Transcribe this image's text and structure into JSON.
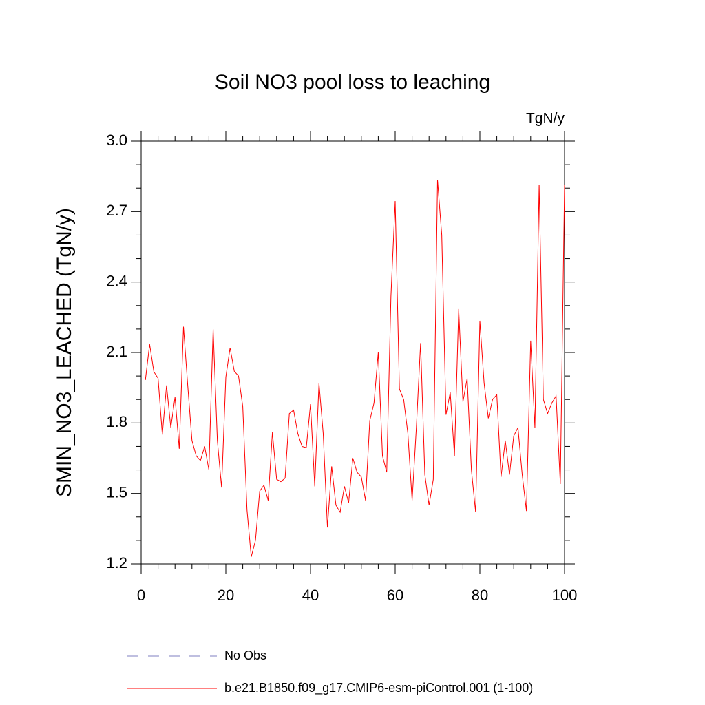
{
  "chart_data": {
    "type": "line",
    "title": "Soil NO3 pool loss to leaching",
    "units_label": "TgN/y",
    "y_label": "SMIN_NO3_LEACHED  (TgN/y)",
    "x": [
      1,
      2,
      3,
      4,
      5,
      6,
      7,
      8,
      9,
      10,
      11,
      12,
      13,
      14,
      15,
      16,
      17,
      18,
      19,
      20,
      21,
      22,
      23,
      24,
      25,
      26,
      27,
      28,
      29,
      30,
      31,
      32,
      33,
      34,
      35,
      36,
      37,
      38,
      39,
      40,
      41,
      42,
      43,
      44,
      45,
      46,
      47,
      48,
      49,
      50,
      51,
      52,
      53,
      54,
      55,
      56,
      57,
      58,
      59,
      60,
      61,
      62,
      63,
      64,
      65,
      66,
      67,
      68,
      69,
      70,
      71,
      72,
      73,
      74,
      75,
      76,
      77,
      78,
      79,
      80,
      81,
      82,
      83,
      84,
      85,
      86,
      87,
      88,
      89,
      90,
      91,
      92,
      93,
      94,
      95,
      96,
      97,
      98,
      99,
      100
    ],
    "series": [
      {
        "name": "No Obs",
        "color": "#7f7fc0",
        "dashed": true,
        "values": [
          null,
          null,
          null,
          null,
          null,
          null,
          null,
          null,
          null,
          null,
          null,
          null,
          null,
          null,
          null,
          null,
          null,
          null,
          null,
          null,
          null,
          null,
          null,
          null,
          null,
          null,
          null,
          null,
          null,
          null,
          null,
          null,
          null,
          null,
          null,
          null,
          null,
          null,
          null,
          null,
          null,
          null,
          null,
          null,
          null,
          null,
          null,
          null,
          null,
          null,
          null,
          null,
          null,
          null,
          null,
          null,
          null,
          null,
          null,
          null,
          null,
          null,
          null,
          null,
          null,
          null,
          null,
          null,
          null,
          null,
          null,
          null,
          null,
          null,
          null,
          null,
          null,
          null,
          null,
          null,
          null,
          null,
          null,
          null,
          null,
          null,
          null,
          null,
          null,
          null,
          null,
          null,
          null,
          null,
          null,
          null,
          null,
          null,
          null,
          null
        ]
      },
      {
        "name": "b.e21.B1850.f09_g17.CMIP6-esm-piControl.001 (1-100)",
        "color": "#ff0000",
        "dashed": false,
        "values": [
          1.983,
          2.135,
          2.018,
          1.99,
          1.75,
          1.96,
          1.78,
          1.91,
          1.69,
          2.21,
          1.96,
          1.725,
          1.66,
          1.64,
          1.7,
          1.6,
          2.2,
          1.725,
          1.525,
          1.995,
          2.12,
          2.02,
          2.0,
          1.87,
          1.43,
          1.23,
          1.3,
          1.51,
          1.535,
          1.47,
          1.76,
          1.56,
          1.55,
          1.565,
          1.84,
          1.855,
          1.755,
          1.7,
          1.695,
          1.88,
          1.53,
          1.97,
          1.755,
          1.355,
          1.615,
          1.45,
          1.42,
          1.53,
          1.46,
          1.65,
          1.59,
          1.57,
          1.47,
          1.81,
          1.885,
          2.1,
          1.66,
          1.59,
          2.34,
          2.745,
          1.945,
          1.9,
          1.755,
          1.47,
          1.78,
          2.14,
          1.58,
          1.45,
          1.56,
          2.835,
          2.6,
          1.835,
          1.93,
          1.66,
          2.285,
          1.89,
          1.99,
          1.6,
          1.42,
          2.235,
          1.97,
          1.82,
          1.9,
          1.92,
          1.57,
          1.725,
          1.58,
          1.745,
          1.78,
          1.58,
          1.425,
          2.15,
          1.78,
          2.815,
          1.9,
          1.84,
          1.885,
          1.915,
          1.54,
          2.815
        ]
      }
    ],
    "xlim": [
      0,
      100
    ],
    "xticks": [
      0,
      20,
      40,
      60,
      80,
      100
    ],
    "ylim": [
      1.2,
      3.0
    ],
    "yticks": [
      1.2,
      1.5,
      1.8,
      2.1,
      2.4,
      2.7,
      {
        "value": 3,
        "label": "3.0"
      }
    ],
    "grid": false
  }
}
